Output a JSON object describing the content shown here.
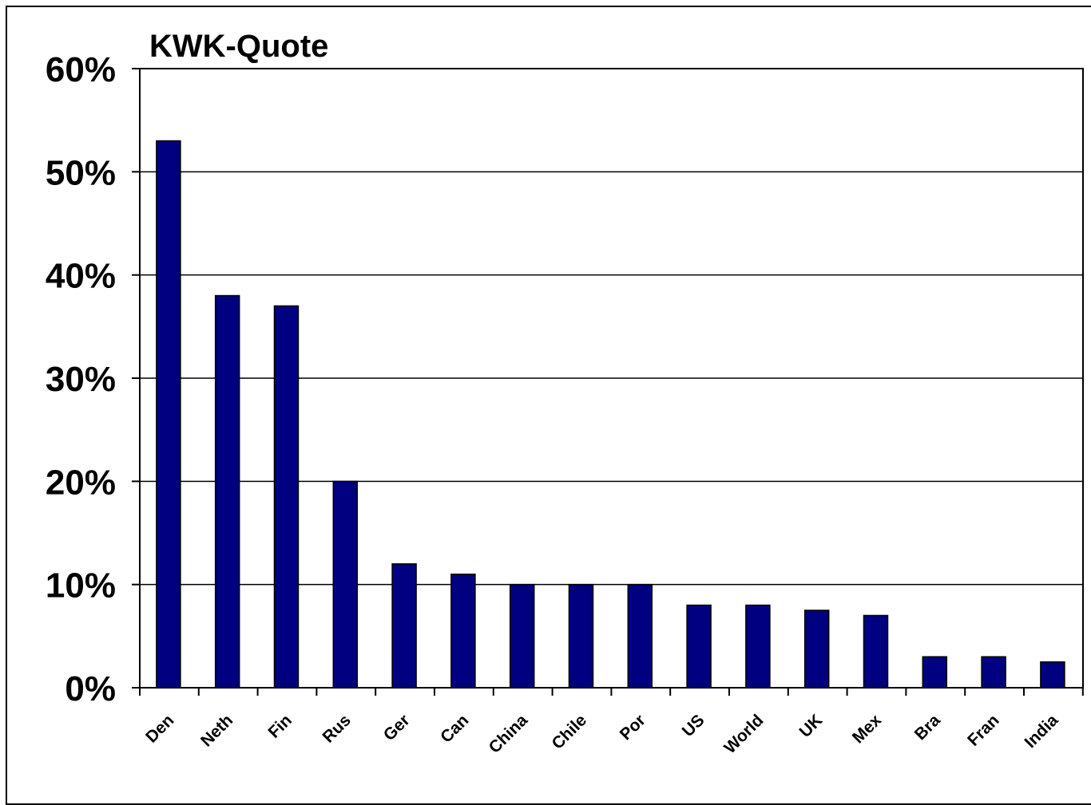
{
  "chart_data": {
    "type": "bar",
    "title": "KWK-Quote",
    "xlabel": "",
    "ylabel": "",
    "ylim": [
      0,
      60
    ],
    "yticks": [
      0,
      10,
      20,
      30,
      40,
      50,
      60
    ],
    "ytick_labels": [
      "0%",
      "10%",
      "20%",
      "30%",
      "40%",
      "50%",
      "60%"
    ],
    "grid": true,
    "legend": "none",
    "bar_color": "#000080",
    "categories": [
      "Den",
      "Neth",
      "Fin",
      "Rus",
      "Ger",
      "Can",
      "China",
      "Chile",
      "Por",
      "US",
      "World",
      "UK",
      "Mex",
      "Bra",
      "Fran",
      "India"
    ],
    "values": [
      53,
      38,
      37,
      20,
      12,
      11,
      10,
      10,
      10,
      8,
      8,
      7.5,
      7,
      3,
      3,
      2.5
    ]
  }
}
